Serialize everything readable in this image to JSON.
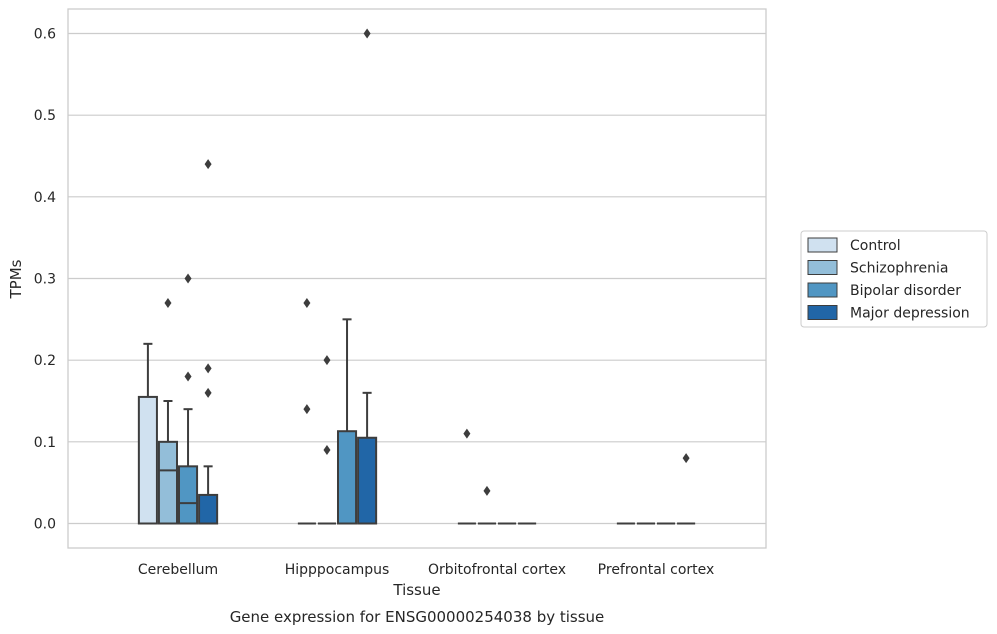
{
  "chart_data": {
    "type": "boxplot",
    "title": "Gene expression for ENSG00000254038 by tissue",
    "xlabel": "Tissue",
    "ylabel": "TPMs",
    "ylim": [
      -0.03,
      0.63
    ],
    "yticks": [
      "0.0",
      "0.1",
      "0.2",
      "0.3",
      "0.4",
      "0.5",
      "0.6"
    ],
    "grid": true,
    "legend_position": "right",
    "categories": [
      "Cerebellum",
      "Hipppocampus",
      "Orbitofrontal cortex",
      "Prefrontal cortex"
    ],
    "series": [
      {
        "name": "Control",
        "color": "#d0e1f0",
        "boxes": [
          {
            "q1": 0.0,
            "median": 0.0,
            "q3": 0.155,
            "whisker_low": 0.0,
            "whisker_high": 0.22,
            "outliers": []
          },
          {
            "q1": 0.0,
            "median": 0.0,
            "q3": 0.0,
            "whisker_low": 0.0,
            "whisker_high": 0.0,
            "outliers": [
              0.27,
              0.14
            ]
          },
          {
            "q1": 0.0,
            "median": 0.0,
            "q3": 0.0,
            "whisker_low": 0.0,
            "whisker_high": 0.0,
            "outliers": [
              0.11
            ]
          },
          {
            "q1": 0.0,
            "median": 0.0,
            "q3": 0.0,
            "whisker_low": 0.0,
            "whisker_high": 0.0,
            "outliers": []
          }
        ]
      },
      {
        "name": "Schizophrenia",
        "color": "#93bed9",
        "boxes": [
          {
            "q1": 0.0,
            "median": 0.065,
            "q3": 0.1,
            "whisker_low": 0.0,
            "whisker_high": 0.15,
            "outliers": [
              0.27
            ]
          },
          {
            "q1": 0.0,
            "median": 0.0,
            "q3": 0.0,
            "whisker_low": 0.0,
            "whisker_high": 0.0,
            "outliers": [
              0.2,
              0.09
            ]
          },
          {
            "q1": 0.0,
            "median": 0.0,
            "q3": 0.0,
            "whisker_low": 0.0,
            "whisker_high": 0.0,
            "outliers": [
              0.04
            ]
          },
          {
            "q1": 0.0,
            "median": 0.0,
            "q3": 0.0,
            "whisker_low": 0.0,
            "whisker_high": 0.0,
            "outliers": []
          }
        ]
      },
      {
        "name": "Bipolar disorder",
        "color": "#5096c3",
        "boxes": [
          {
            "q1": 0.0,
            "median": 0.025,
            "q3": 0.07,
            "whisker_low": 0.0,
            "whisker_high": 0.14,
            "outliers": [
              0.3,
              0.18
            ]
          },
          {
            "q1": 0.0,
            "median": 0.0,
            "q3": 0.113,
            "whisker_low": 0.0,
            "whisker_high": 0.25,
            "outliers": []
          },
          {
            "q1": 0.0,
            "median": 0.0,
            "q3": 0.0,
            "whisker_low": 0.0,
            "whisker_high": 0.0,
            "outliers": []
          },
          {
            "q1": 0.0,
            "median": 0.0,
            "q3": 0.0,
            "whisker_low": 0.0,
            "whisker_high": 0.0,
            "outliers": []
          }
        ]
      },
      {
        "name": "Major depression",
        "color": "#2166a7",
        "boxes": [
          {
            "q1": 0.0,
            "median": 0.0,
            "q3": 0.035,
            "whisker_low": 0.0,
            "whisker_high": 0.07,
            "outliers": [
              0.44,
              0.19,
              0.16
            ]
          },
          {
            "q1": 0.0,
            "median": 0.0,
            "q3": 0.105,
            "whisker_low": 0.0,
            "whisker_high": 0.16,
            "outliers": [
              0.6
            ]
          },
          {
            "q1": 0.0,
            "median": 0.0,
            "q3": 0.0,
            "whisker_low": 0.0,
            "whisker_high": 0.0,
            "outliers": []
          },
          {
            "q1": 0.0,
            "median": 0.0,
            "q3": 0.0,
            "whisker_low": 0.0,
            "whisker_high": 0.0,
            "outliers": [
              0.08
            ]
          }
        ]
      }
    ]
  }
}
